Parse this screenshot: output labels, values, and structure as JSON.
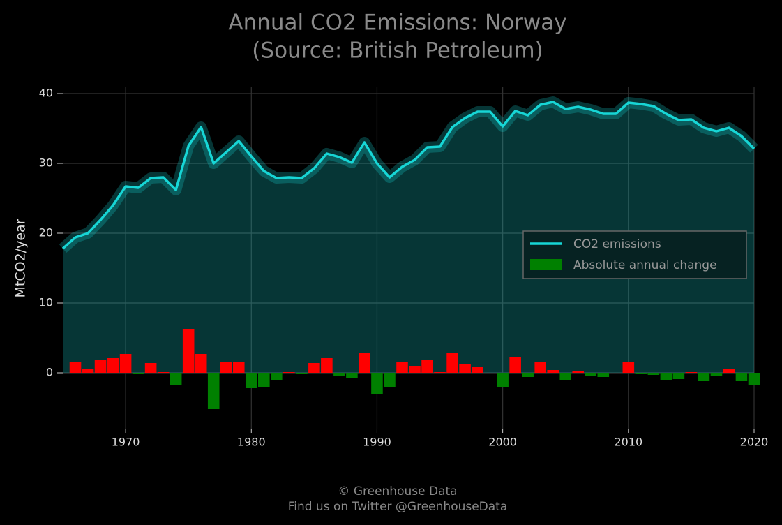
{
  "chart_data": {
    "type": "line_bar",
    "title": [
      "Annual CO2 Emissions: Norway",
      "(Source: British Petroleum)"
    ],
    "ylabel": "MtCO2/year",
    "footer": [
      "© Greenhouse Data",
      "Find us on Twitter @GreenhouseData"
    ],
    "x": [
      1965,
      1966,
      1967,
      1968,
      1969,
      1970,
      1971,
      1972,
      1973,
      1974,
      1975,
      1976,
      1977,
      1978,
      1979,
      1980,
      1981,
      1982,
      1983,
      1984,
      1985,
      1986,
      1987,
      1988,
      1989,
      1990,
      1991,
      1992,
      1993,
      1994,
      1995,
      1996,
      1997,
      1998,
      1999,
      2000,
      2001,
      2002,
      2003,
      2004,
      2005,
      2006,
      2007,
      2008,
      2009,
      2010,
      2011,
      2012,
      2013,
      2014,
      2015,
      2016,
      2017,
      2018,
      2019,
      2020
    ],
    "series": [
      {
        "name": "CO2 emissions",
        "color": "#17d6d6",
        "values": [
          17.8,
          19.4,
          20.0,
          21.9,
          24.0,
          26.7,
          26.5,
          27.9,
          28.0,
          26.2,
          32.5,
          35.2,
          30.0,
          31.6,
          33.2,
          31.0,
          28.9,
          27.9,
          28.0,
          27.9,
          29.3,
          31.4,
          30.9,
          30.1,
          33.0,
          30.0,
          28.0,
          29.5,
          30.5,
          32.3,
          32.4,
          35.2,
          36.5,
          37.4,
          37.4,
          35.3,
          37.5,
          36.9,
          38.4,
          38.8,
          37.8,
          38.1,
          37.7,
          37.1,
          37.1,
          38.7,
          38.5,
          38.2,
          37.1,
          36.2,
          36.3,
          35.1,
          34.6,
          35.1,
          33.9,
          32.1
        ]
      },
      {
        "name": "Absolute annual change",
        "color": "#008000",
        "positive_color": "#ff0000",
        "negative_color": "#008000",
        "values": [
          null,
          1.6,
          0.6,
          1.9,
          2.1,
          2.7,
          -0.2,
          1.4,
          0.1,
          -1.8,
          6.3,
          2.7,
          -5.2,
          1.6,
          1.6,
          -2.2,
          -2.1,
          -1.0,
          0.1,
          -0.1,
          1.4,
          2.1,
          -0.5,
          -0.8,
          2.9,
          -3.0,
          -2.0,
          1.5,
          1.0,
          1.8,
          0.1,
          2.8,
          1.3,
          0.9,
          0,
          -2.1,
          2.2,
          -0.6,
          1.5,
          0.4,
          -1.0,
          0.3,
          -0.4,
          -0.6,
          0,
          1.6,
          -0.2,
          -0.3,
          -1.1,
          -0.9,
          0.1,
          -1.2,
          -0.5,
          0.5,
          -1.2,
          -1.8
        ]
      }
    ],
    "xlim": [
      1965,
      2020
    ],
    "xticks": [
      1970,
      1980,
      1990,
      2000,
      2010,
      2020
    ],
    "ylim": [
      -8,
      41
    ],
    "yticks": [
      0,
      10,
      20,
      30,
      40
    ],
    "grid": true,
    "legend": "right"
  }
}
